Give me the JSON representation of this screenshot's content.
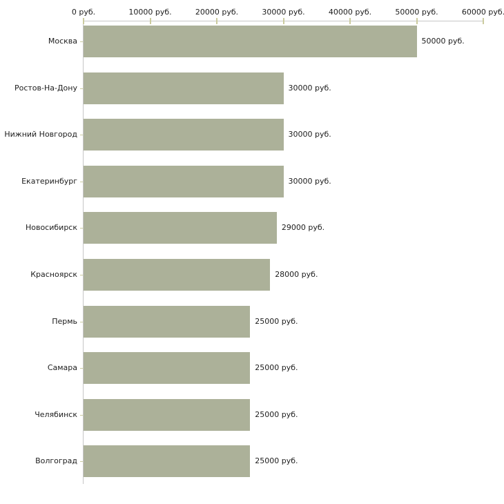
{
  "chart_data": {
    "type": "bar",
    "orientation": "horizontal",
    "title": "",
    "xlabel": "",
    "ylabel": "",
    "unit": "руб.",
    "categories": [
      "Москва",
      "Ростов-На-Дону",
      "Нижний Новгород",
      "Екатеринбург",
      "Новосибирск",
      "Красноярск",
      "Пермь",
      "Самара",
      "Челябинск",
      "Волгоград"
    ],
    "values": [
      50000,
      30000,
      30000,
      30000,
      29000,
      28000,
      25000,
      25000,
      25000,
      25000
    ],
    "value_labels": [
      "50000 руб.",
      "30000 руб.",
      "30000 руб.",
      "30000 руб.",
      "29000 руб.",
      "28000 руб.",
      "25000 руб.",
      "25000 руб.",
      "25000 руб.",
      "25000 руб."
    ],
    "x_axis": {
      "position": "top",
      "min": 0,
      "max": 60000,
      "tick_step": 10000,
      "tick_values": [
        0,
        10000,
        20000,
        30000,
        40000,
        50000,
        60000
      ],
      "tick_labels": [
        "0 руб.",
        "10000 руб.",
        "20000 руб.",
        "30000 руб.",
        "40000 руб.",
        "50000 руб.",
        "60000 руб."
      ]
    },
    "grid": false,
    "legend": false,
    "colors": {
      "bar": "#acb199",
      "axis_line": "#c6c6c6",
      "tick": "#cbcb9e",
      "text": "#1c1c1c",
      "background": "#ffffff"
    }
  }
}
